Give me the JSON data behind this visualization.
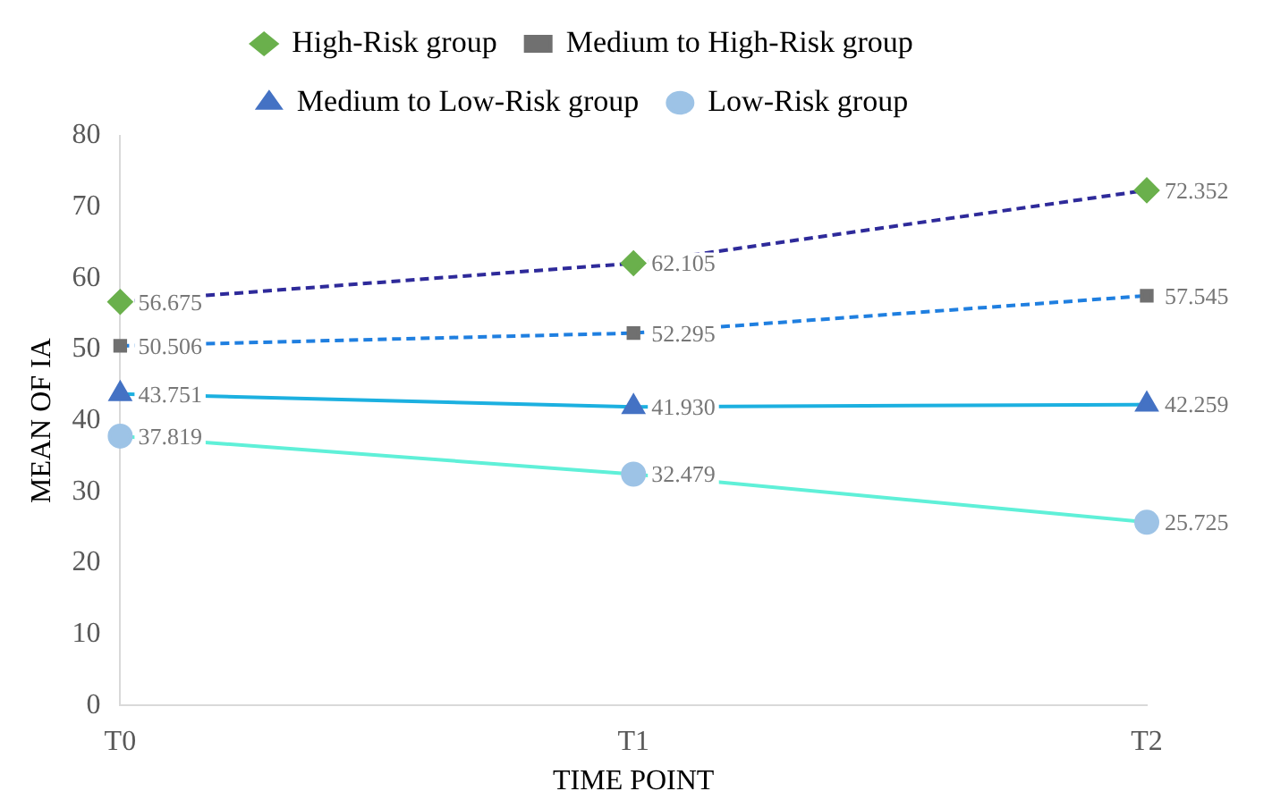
{
  "chart_data": {
    "type": "line",
    "xlabel": "TIME POINT",
    "ylabel": "MEAN OF IA",
    "categories": [
      "T0",
      "T1",
      "T2"
    ],
    "ylim": [
      0,
      80
    ],
    "yticks": [
      0,
      10,
      20,
      30,
      40,
      50,
      60,
      70,
      80
    ],
    "grid": false,
    "legend": "top",
    "series": [
      {
        "name": "High-Risk group",
        "color": "#2e2a9a",
        "colors": [
          "#6ab04c",
          "#6ab04c",
          "#6ab04c"
        ],
        "marker": "diamond",
        "line_style": "dashed",
        "values": [
          56.675,
          62.105,
          72.352
        ],
        "value_labels": [
          "56.675",
          "62.105",
          "72.352"
        ]
      },
      {
        "name": "Medium to High-Risk group",
        "color": "#1f7fe0",
        "colors": [
          "#707070",
          "#707070",
          "#707070"
        ],
        "marker": "square",
        "line_style": "dashed",
        "values": [
          50.506,
          52.295,
          57.545
        ],
        "value_labels": [
          "50.506",
          "52.295",
          "57.545"
        ]
      },
      {
        "name": "Medium to Low-Risk group",
        "color": "#1cb0e0",
        "colors": [
          "#4472c4",
          "#4472c4",
          "#4472c4"
        ],
        "marker": "triangle",
        "line_style": "solid",
        "values": [
          43.751,
          41.93,
          42.259
        ],
        "value_labels": [
          "43.751",
          "41.930",
          "42.259"
        ]
      },
      {
        "name": "Low-Risk group",
        "color": "#5ff0d8",
        "colors": [
          "#9dc3e6",
          "#9dc3e6",
          "#9dc3e6"
        ],
        "marker": "circle",
        "line_style": "solid",
        "values": [
          37.819,
          32.479,
          25.725
        ],
        "value_labels": [
          "37.819",
          "32.479",
          "25.725"
        ]
      }
    ]
  }
}
